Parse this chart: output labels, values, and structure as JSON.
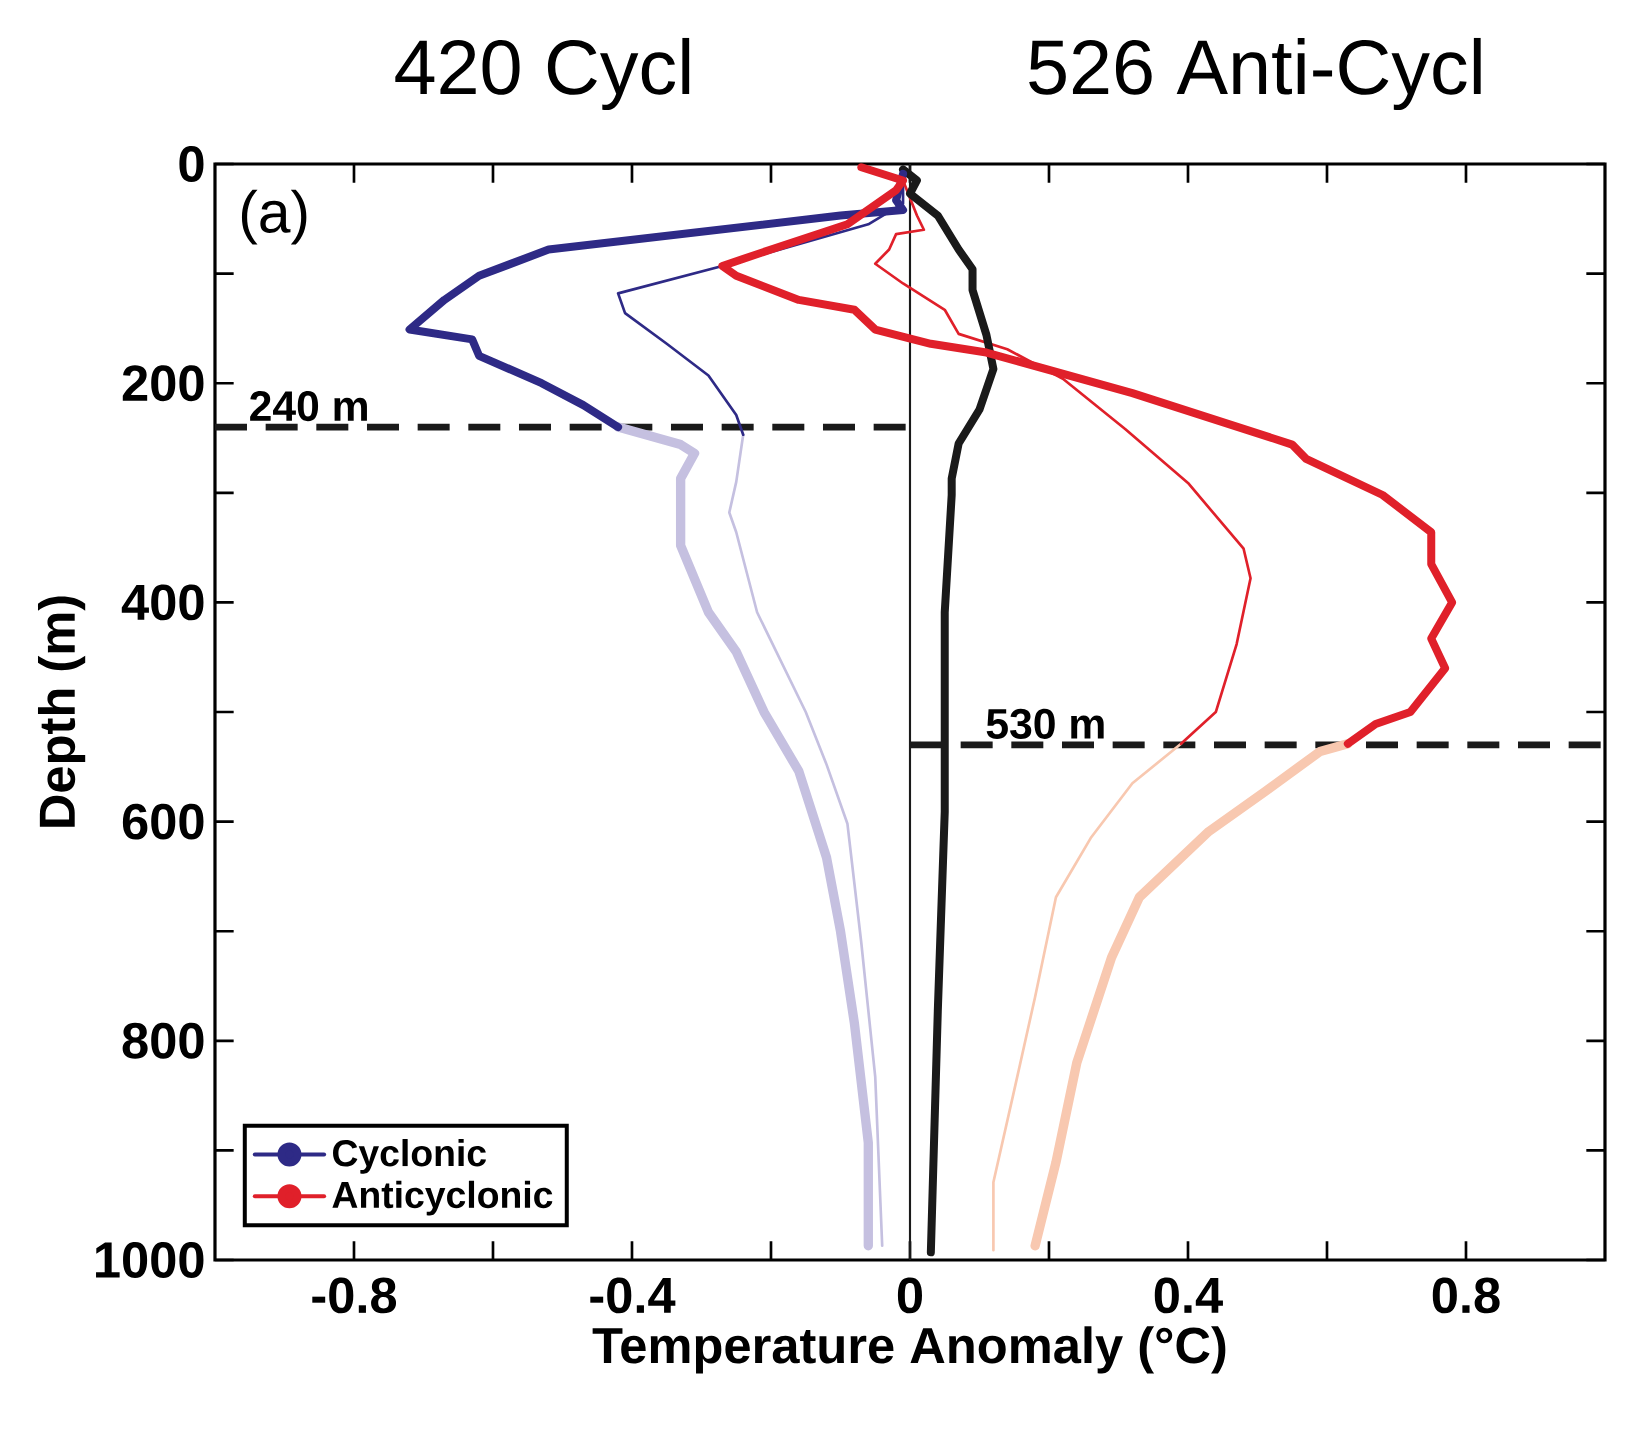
{
  "chart_data": {
    "type": "line",
    "title": "420 Cycl",
    "subtitle": "526 Anti-Cycl",
    "xlabel": "Temperature Anomaly (°C)",
    "ylabel": "Depth (m)",
    "annotations": [
      "(a)"
    ],
    "xlim": [
      -1,
      1
    ],
    "ylim": [
      1000,
      0
    ],
    "xticks": [
      -0.8,
      {
        "value": -0.6,
        "label": null
      },
      -0.4,
      {
        "value": -0.2,
        "label": null
      },
      0,
      {
        "value": 0.2,
        "label": null
      },
      0.4,
      {
        "value": 0.6,
        "label": null
      },
      0.8
    ],
    "yticks": [
      0,
      {
        "value": 100,
        "label": null
      },
      200,
      {
        "value": 300,
        "label": null
      },
      400,
      {
        "value": 500,
        "label": null
      },
      600,
      {
        "value": 700,
        "label": null
      },
      800,
      {
        "value": 900,
        "label": null
      },
      1000
    ],
    "legend": "bottom left",
    "grid": false,
    "ref_lines": [
      {
        "axis": "y",
        "value": 240,
        "label": "240 m",
        "color": "#1a1a1a",
        "line_style": "dashed"
      },
      {
        "axis": "y",
        "value": 530,
        "label": "530 m",
        "color": "#1a1a1a",
        "line_style": "dashed"
      },
      {
        "axis": "x",
        "value": 0,
        "color": "#1a1a1a",
        "line_style": "solid"
      }
    ],
    "series": [
      {
        "color": "#c5c0e0",
        "x": [
          -0.42,
          -0.33,
          -0.31,
          -0.33,
          -0.33,
          -0.29,
          -0.25,
          -0.21,
          -0.16,
          -0.12,
          -0.1,
          -0.08,
          -0.06,
          -0.06
        ],
        "values": [
          240,
          256,
          264,
          287,
          348,
          409,
          445,
          500,
          554,
          633,
          700,
          784,
          893,
          987
        ]
      },
      {
        "color": "#c5c0e0",
        "x": [
          -0.24,
          -0.25,
          -0.26,
          -0.25,
          -0.22,
          -0.15,
          -0.12,
          -0.09,
          -0.07,
          -0.05,
          -0.04
        ],
        "values": [
          247,
          290,
          318,
          336,
          409,
          500,
          548,
          602,
          711,
          833,
          987
        ]
      },
      {
        "color": "#f8c8b0",
        "x": [
          0.63,
          0.59,
          0.51,
          0.43,
          0.33,
          0.29,
          0.24,
          0.21,
          0.18
        ],
        "values": [
          529,
          536,
          573,
          609,
          669,
          724,
          820,
          911,
          987
        ]
      },
      {
        "color": "#f8c8b0",
        "x": [
          0.39,
          0.32,
          0.26,
          0.21,
          0.18,
          0.15,
          0.12,
          0.12
        ],
        "values": [
          529,
          565,
          615,
          669,
          760,
          845,
          929,
          991
        ]
      },
      {
        "color": "#2e2a86",
        "x": [
          -0.01,
          -0.01,
          -0.06,
          -0.27,
          -0.42,
          -0.41,
          -0.35,
          -0.29,
          -0.25,
          -0.24
        ],
        "values": [
          15,
          36,
          55,
          93,
          118,
          136,
          164,
          193,
          229,
          247
        ]
      },
      {
        "color": "#e0202a",
        "x": [
          -0.06,
          -0.01,
          0.01,
          0.02,
          -0.02,
          -0.03,
          -0.05,
          -0.01,
          0.05,
          0.07,
          0.14,
          0.22,
          0.31,
          0.4,
          0.48,
          0.49,
          0.47,
          0.44,
          0.39
        ],
        "values": [
          3,
          15,
          47,
          60,
          64,
          78,
          91,
          109,
          133,
          155,
          169,
          196,
          242,
          291,
          351,
          378,
          438,
          500,
          529
        ]
      },
      {
        "color": "#1a1a1a",
        "x": [
          -0.01,
          0.01,
          0.0,
          0.04,
          0.07,
          0.09,
          0.09,
          0.11,
          0.12,
          0.1,
          0.07,
          0.06,
          0.06,
          0.05,
          0.05,
          0.04,
          0.03
        ],
        "values": [
          5,
          15,
          27,
          47,
          78,
          96,
          115,
          156,
          187,
          224,
          255,
          287,
          302,
          409,
          591,
          773,
          993
        ]
      },
      {
        "name": "Cyclonic",
        "color": "#2e2a86",
        "x": [
          -0.01,
          -0.02,
          -0.01,
          -0.1,
          -0.52,
          -0.62,
          -0.67,
          -0.72,
          -0.63,
          -0.62,
          -0.53,
          -0.47,
          -0.42
        ],
        "values": [
          9,
          33,
          42,
          47,
          78,
          102,
          124,
          151,
          160,
          175,
          200,
          220,
          240
        ]
      },
      {
        "name": "Anticyclonic",
        "color": "#e0202a",
        "x": [
          -0.07,
          -0.01,
          -0.02,
          -0.09,
          -0.2,
          -0.27,
          -0.25,
          -0.16,
          -0.08,
          -0.05,
          0.03,
          0.11,
          0.32,
          0.55,
          0.57,
          0.68,
          0.75,
          0.75,
          0.78,
          0.75,
          0.77,
          0.72,
          0.67,
          0.63
        ],
        "values": [
          3,
          15,
          24,
          55,
          78,
          93,
          102,
          124,
          133,
          151,
          164,
          172,
          209,
          256,
          269,
          302,
          336,
          365,
          400,
          433,
          460,
          500,
          511,
          529
        ]
      }
    ]
  }
}
